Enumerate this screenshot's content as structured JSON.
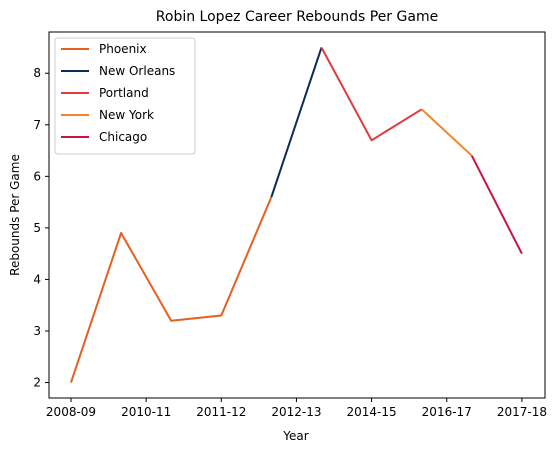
{
  "chart_data": {
    "type": "line",
    "title": "Robin Lopez Career Rebounds Per Game",
    "xlabel": "Year",
    "ylabel": "Rebounds Per Game",
    "x_tick_labels": [
      "2008-09",
      "2010-11",
      "2011-12",
      "2012-13",
      "2014-15",
      "2016-17",
      "2017-18"
    ],
    "y_ticks": [
      2,
      3,
      4,
      5,
      6,
      7,
      8
    ],
    "ylim": [
      1.7,
      8.8
    ],
    "legend_position": "top-left",
    "grid": false,
    "series": [
      {
        "name": "Phoenix",
        "color": "#e56020",
        "x": [
          0,
          1,
          2,
          3,
          4
        ],
        "y": [
          2.0,
          4.9,
          3.2,
          3.3,
          5.6
        ]
      },
      {
        "name": "New Orleans",
        "color": "#0c2c56",
        "x": [
          4,
          5
        ],
        "y": [
          5.6,
          8.5
        ]
      },
      {
        "name": "Portland",
        "color": "#e03a3e",
        "x": [
          5,
          6,
          7
        ],
        "y": [
          8.5,
          6.7,
          7.3
        ]
      },
      {
        "name": "New York",
        "color": "#f58426",
        "x": [
          7,
          8
        ],
        "y": [
          7.3,
          6.4
        ]
      },
      {
        "name": "Chicago",
        "color": "#ce1141",
        "x": [
          8,
          9
        ],
        "y": [
          6.4,
          4.5
        ]
      }
    ]
  }
}
